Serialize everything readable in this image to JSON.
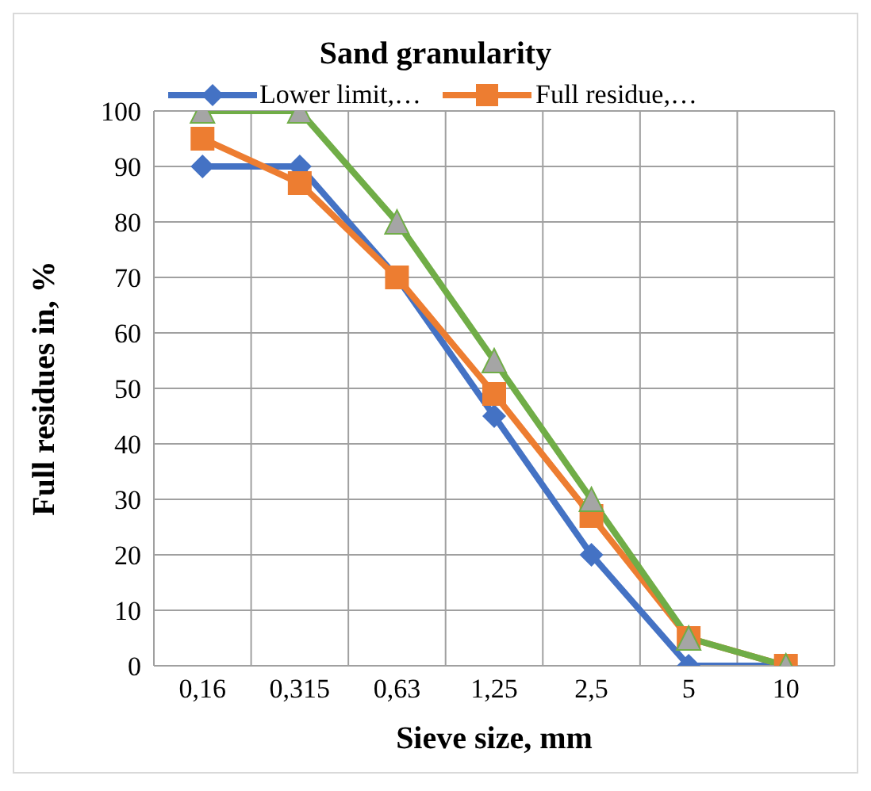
{
  "chart_data": {
    "type": "line",
    "title": "Sand granularity",
    "xlabel": "Sieve size, mm",
    "ylabel": "Full residues in, %",
    "categories": [
      "0,16",
      "0,315",
      "0,63",
      "1,25",
      "2,5",
      "5",
      "10"
    ],
    "series": [
      {
        "name": "Lower limit,…",
        "color": "#4472c4",
        "marker": "diamond",
        "values": [
          90,
          90,
          70,
          45,
          20,
          0,
          0
        ]
      },
      {
        "name": "Full residue,…",
        "color": "#ed7d31",
        "marker": "square",
        "values": [
          95,
          87,
          70,
          49,
          27,
          5,
          0
        ]
      },
      {
        "color": "#70ad47",
        "marker": "triangle",
        "values": [
          100,
          100,
          80,
          55,
          30,
          5,
          0
        ]
      }
    ],
    "ylim": [
      0,
      100
    ],
    "yticks": [
      0,
      10,
      20,
      30,
      40,
      50,
      60,
      70,
      80,
      90,
      100
    ],
    "grid": true,
    "legend": "top"
  }
}
